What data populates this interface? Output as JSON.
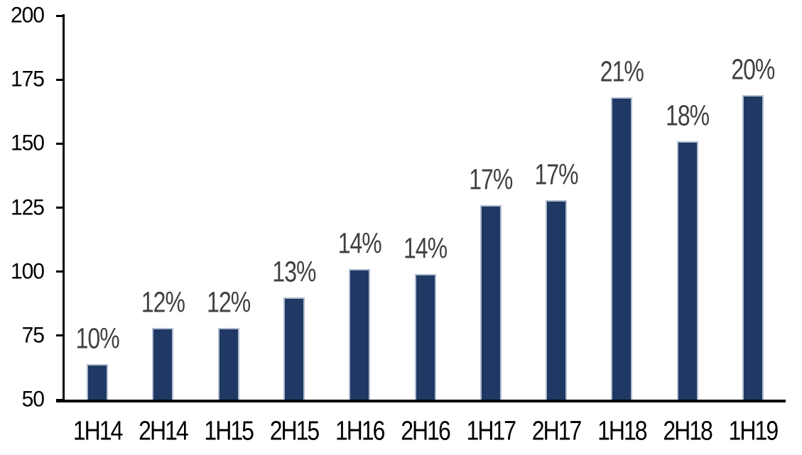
{
  "chart_data": {
    "type": "bar",
    "title": "",
    "xlabel": "",
    "ylabel": "",
    "categories": [
      "1H14",
      "2H14",
      "1H15",
      "2H15",
      "1H16",
      "2H16",
      "1H17",
      "2H17",
      "1H18",
      "2H18",
      "1H19"
    ],
    "values": [
      64,
      78,
      78,
      90,
      101,
      99,
      126,
      128,
      168,
      151,
      169
    ],
    "data_labels": [
      "10%",
      "12%",
      "12%",
      "13%",
      "14%",
      "14%",
      "17%",
      "17%",
      "21%",
      "18%",
      "20%"
    ],
    "ylim": [
      50,
      200
    ],
    "yticks": [
      50,
      75,
      100,
      125,
      150,
      175,
      200
    ],
    "grid": false,
    "legend": "none",
    "colors": {
      "bar_fill": "#1F3864",
      "bar_border": "#AFBCCE",
      "data_label": "#404040",
      "axis": "#000000",
      "tick_label": "#000000",
      "background": "#FFFFFF"
    }
  }
}
